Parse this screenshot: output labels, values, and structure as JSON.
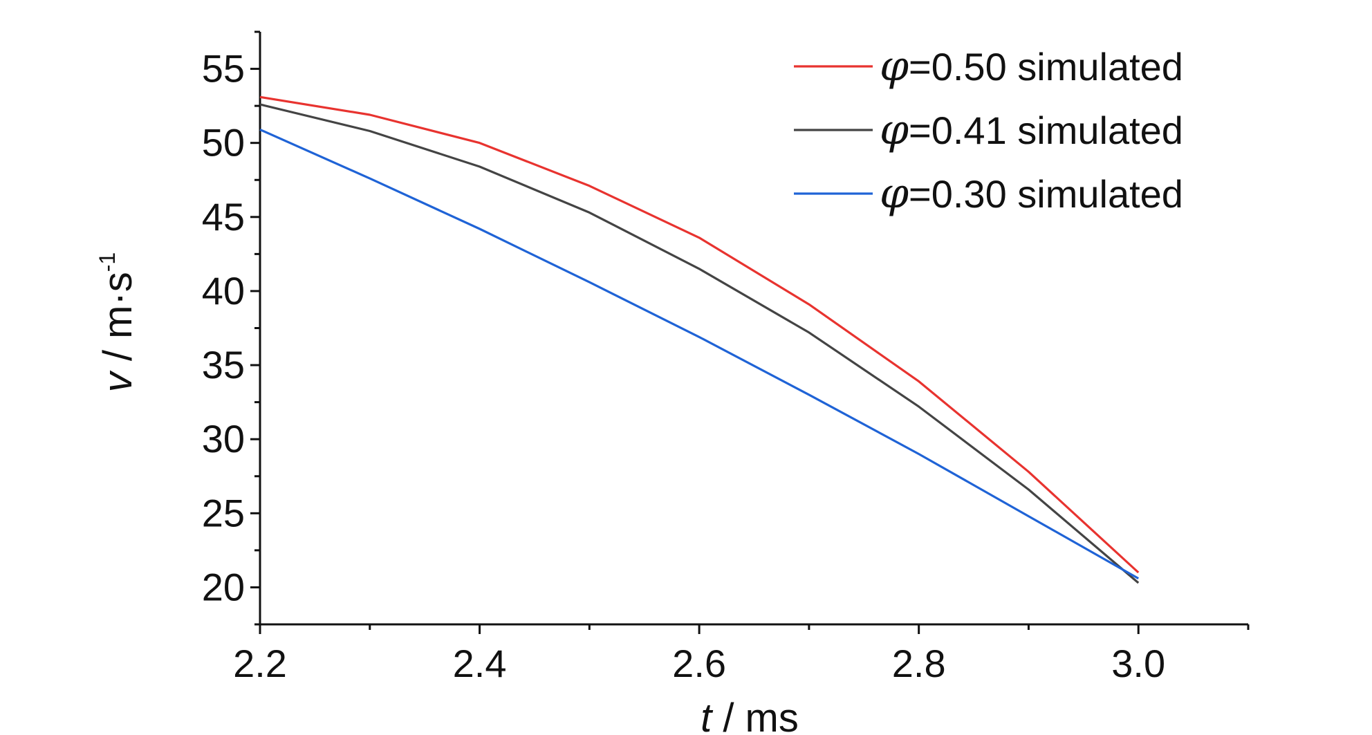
{
  "chart_data": {
    "type": "line",
    "title": "",
    "xlabel": {
      "var": "t",
      "unit": " / ms"
    },
    "ylabel": {
      "var": "v",
      "unit": " / m·s",
      "sup": "-1"
    },
    "xlim": [
      2.2,
      3.1
    ],
    "ylim": [
      17.5,
      57.5
    ],
    "xticks": [
      2.2,
      2.4,
      2.6,
      2.8,
      3.0
    ],
    "xtick_labels": [
      "2.2",
      "2.4",
      "2.6",
      "2.8",
      "3.0"
    ],
    "xminor": [
      2.3,
      2.5,
      2.7,
      2.9,
      3.1
    ],
    "yticks": [
      20,
      25,
      30,
      35,
      40,
      45,
      50,
      55
    ],
    "ytick_labels": [
      "20",
      "25",
      "30",
      "35",
      "40",
      "45",
      "50",
      "55"
    ],
    "grid": false,
    "legend_position": "top-right",
    "x": [
      2.2,
      2.3,
      2.4,
      2.5,
      2.6,
      2.7,
      2.8,
      2.9,
      3.0
    ],
    "series": [
      {
        "symbol": "φ",
        "name": "=0.50 simulated",
        "color": "#e8332f",
        "values": [
          53.1,
          51.9,
          50.0,
          47.1,
          43.6,
          39.1,
          33.9,
          27.8,
          21.0
        ]
      },
      {
        "symbol": "φ",
        "name": "=0.41 simulated",
        "color": "#444444",
        "values": [
          52.6,
          50.8,
          48.4,
          45.3,
          41.5,
          37.2,
          32.2,
          26.6,
          20.3
        ]
      },
      {
        "symbol": "φ",
        "name": "=0.30 simulated",
        "color": "#1f63d6",
        "values": [
          50.9,
          47.6,
          44.2,
          40.6,
          36.9,
          33.0,
          29.0,
          24.8,
          20.6
        ]
      }
    ]
  }
}
